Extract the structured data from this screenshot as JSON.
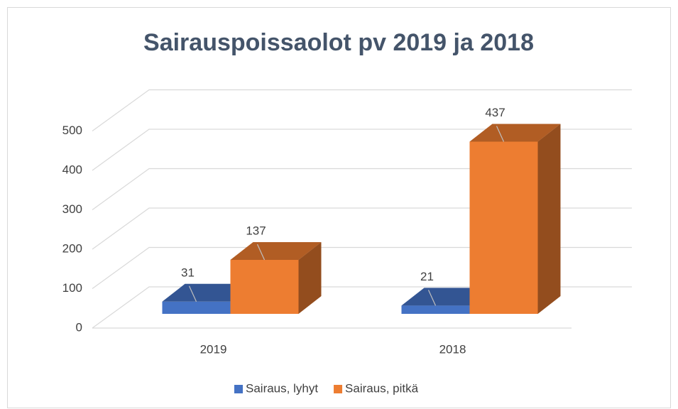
{
  "chart_data": {
    "type": "bar3d",
    "title": "Sairauspoissaolot pv 2019 ja 2018",
    "categories": [
      "2019",
      "2018"
    ],
    "series": [
      {
        "name": "Sairaus, lyhyt",
        "color": "#4472c4",
        "values": [
          31,
          21
        ]
      },
      {
        "name": "Sairaus, pitkä",
        "color": "#ed7d31",
        "values": [
          137,
          437
        ]
      }
    ],
    "ylim": [
      0,
      500
    ],
    "yticks": [
      0,
      100,
      200,
      300,
      400,
      500
    ],
    "grid": true,
    "legend": "bottom"
  }
}
